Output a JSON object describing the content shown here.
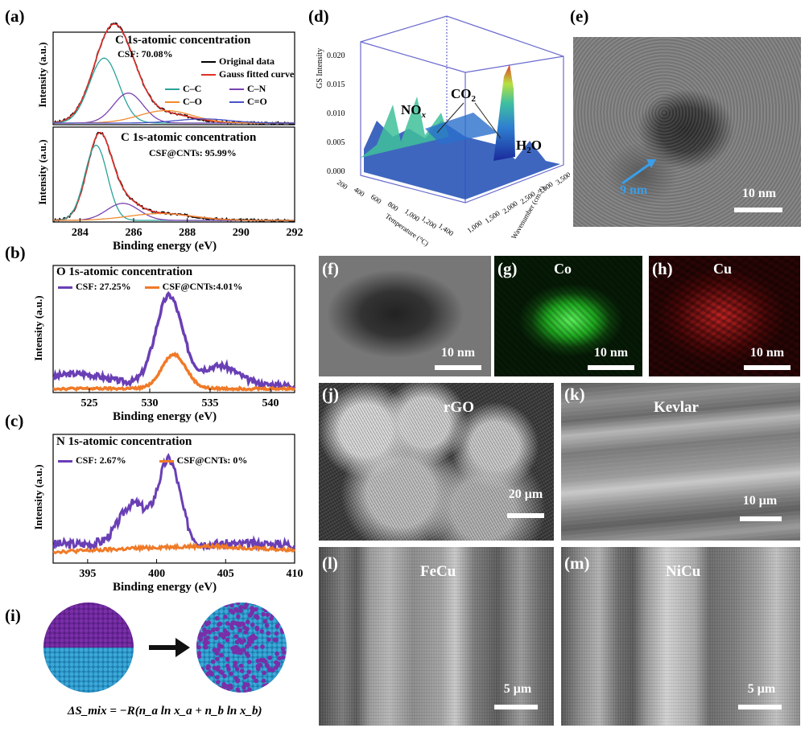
{
  "labels": {
    "a": "(a)",
    "b": "(b)",
    "c": "(c)",
    "d": "(d)",
    "e": "(e)",
    "f": "(f)",
    "g": "(g)",
    "h": "(h)",
    "i": "(i)",
    "j": "(j)",
    "k": "(k)",
    "l": "(l)",
    "m": "(m)"
  },
  "colors": {
    "original": "#000000",
    "gauss": "#e0302a",
    "cc": "#2aa39a",
    "cn": "#7a43b0",
    "co": "#f08a2e",
    "cdo": "#4a52c8",
    "csf": "#6a3fb5",
    "csfcnt": "#f07a28"
  },
  "chart_data": [
    {
      "type": "line",
      "id": "a-top",
      "title": "C 1s-atomic concentration",
      "subtitle": "CSF: 70.08%",
      "ylabel": "Intensity (a.u.)",
      "legend": [
        "Original data",
        "Gauss fitted curve",
        "C–C",
        "C–N",
        "C–O",
        "C=O"
      ],
      "xlim": [
        283,
        292
      ],
      "ylim": [
        0,
        1
      ],
      "series": [
        {
          "name": "Original data",
          "peaks": [
            [
              285.1,
              0.95,
              0.65
            ],
            [
              285.8,
              0.35,
              0.6
            ],
            [
              287,
              0.12,
              1.1
            ]
          ]
        },
        {
          "name": "Gauss fitted curve",
          "peaks": [
            [
              285.1,
              0.95,
              0.65
            ],
            [
              285.8,
              0.35,
              0.6
            ],
            [
              287,
              0.12,
              1.1
            ]
          ]
        },
        {
          "name": "C–C",
          "peaks": [
            [
              284.9,
              0.78,
              0.55
            ]
          ]
        },
        {
          "name": "C–N",
          "peaks": [
            [
              285.8,
              0.36,
              0.55
            ]
          ]
        },
        {
          "name": "C–O",
          "peaks": [
            [
              287.2,
              0.15,
              1.0
            ]
          ]
        },
        {
          "name": "C=O",
          "peaks": [
            [
              288.6,
              0.05,
              1.0
            ]
          ]
        }
      ]
    },
    {
      "type": "line",
      "id": "a-bot",
      "title": "C 1s-atomic concentration",
      "subtitle": "CSF@CNTs: 95.99%",
      "xlabel": "Binding energy (eV)",
      "ylabel": "Intensity (a.u.)",
      "xticks": [
        284,
        286,
        288,
        290,
        292
      ],
      "xlim": [
        283,
        292
      ],
      "ylim": [
        0,
        1
      ],
      "series": [
        {
          "name": "Original data",
          "peaks": [
            [
              284.7,
              0.92,
              0.45
            ],
            [
              285.5,
              0.22,
              0.6
            ],
            [
              287,
              0.08,
              1.2
            ]
          ]
        },
        {
          "name": "Gauss fitted curve",
          "peaks": [
            [
              284.7,
              0.92,
              0.45
            ],
            [
              285.5,
              0.22,
              0.6
            ],
            [
              287,
              0.08,
              1.2
            ]
          ]
        },
        {
          "name": "C–C",
          "peaks": [
            [
              284.6,
              0.88,
              0.42
            ]
          ]
        },
        {
          "name": "C–N",
          "peaks": [
            [
              285.6,
              0.2,
              0.6
            ]
          ]
        },
        {
          "name": "C–O",
          "peaks": [
            [
              287,
              0.08,
              1.2
            ]
          ]
        }
      ]
    },
    {
      "type": "line",
      "id": "b",
      "title": "O 1s-atomic concentration",
      "xlabel": "Binding energy (eV)",
      "ylabel": "Intensity (a.u.)",
      "xticks": [
        525,
        530,
        535,
        540
      ],
      "xlim": [
        522,
        542
      ],
      "ylim": [
        0,
        1
      ],
      "series": [
        {
          "name": "CSF: 27.25%",
          "peaks": [
            [
              531.6,
              0.78,
              1.1
            ],
            [
              535.8,
              0.17,
              1.5
            ],
            [
              524,
              0.1,
              2.5
            ]
          ],
          "base": 0.05
        },
        {
          "name": "CSF@CNTs:4.01%",
          "peaks": [
            [
              532,
              0.3,
              1.0
            ]
          ],
          "base": 0.02
        }
      ]
    },
    {
      "type": "line",
      "id": "c",
      "title": "N 1s-atomic concentration",
      "xlabel": "Binding energy (eV)",
      "ylabel": "Intensity (a.u.)",
      "xticks": [
        395,
        400,
        405,
        410
      ],
      "xlim": [
        392.5,
        410
      ],
      "ylim": [
        0,
        1
      ],
      "series": [
        {
          "name": "CSF: 2.67%",
          "peaks": [
            [
              398.3,
              0.35,
              1.0
            ],
            [
              400.9,
              0.72,
              0.8
            ]
          ],
          "base": 0.15
        },
        {
          "name": "CSF@CNTs: 0%",
          "peaks": [
            [
              403,
              0.05,
              5
            ]
          ],
          "base": 0.08
        }
      ]
    }
  ],
  "panel_d": {
    "zlabel": "GS Intensity",
    "xlabel": "Temperature (°C)",
    "ylabel": "Wavenumber (cm⁻¹)",
    "zticks": [
      "0.020",
      "0.015",
      "0.010",
      "0.005",
      "0.000"
    ],
    "xticks": [
      "200",
      "400",
      "600",
      "800",
      "1,000",
      "1,200",
      "1,400"
    ],
    "yticks": [
      "1,000",
      "1,500",
      "2,000",
      "2,500",
      "3,000",
      "3,500"
    ],
    "species": {
      "nox": "NO",
      "nox_sub": "x",
      "co2": "CO",
      "co2_sub": "2",
      "h2o": "H",
      "h2o_sub": "2",
      "h2o_end": "O"
    }
  },
  "panel_e": {
    "annotation": "9 nm",
    "scale": "10 nm"
  },
  "panel_f": {
    "scale": "10 nm"
  },
  "panel_g": {
    "element": "Co",
    "scale": "10 nm"
  },
  "panel_h": {
    "element": "Cu",
    "scale": "10 nm"
  },
  "panel_i": {
    "equation": "ΔS_mix = −R(n_a ln x_a + n_b ln x_b)"
  },
  "panel_j": {
    "material": "rGO",
    "scale": "20 μm"
  },
  "panel_k": {
    "material": "Kevlar",
    "scale": "10 μm"
  },
  "panel_l": {
    "material": "FeCu",
    "scale": "5 μm"
  },
  "panel_m": {
    "material": "NiCu",
    "scale": "5 μm"
  }
}
